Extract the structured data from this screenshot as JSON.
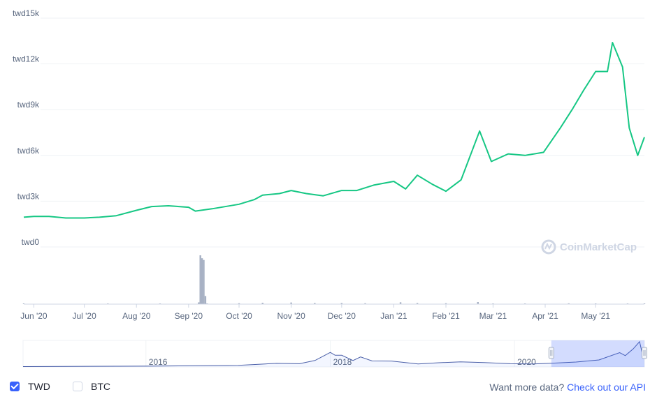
{
  "chart_data": {
    "type": "line",
    "currency_unit": "TWD",
    "y_axis_ticks": [
      "twd0",
      "twd3k",
      "twd6k",
      "twd9k",
      "twd12k",
      "twd15k"
    ],
    "y_axis_values": [
      0,
      3000,
      6000,
      9000,
      12000,
      15000
    ],
    "ylim": [
      0,
      15000
    ],
    "x_axis_ticks": [
      "Jun '20",
      "Jul '20",
      "Aug '20",
      "Sep '20",
      "Oct '20",
      "Nov '20",
      "Dec '20",
      "Jan '21",
      "Feb '21",
      "Mar '21",
      "Apr '21",
      "May '21"
    ],
    "xlim": [
      "2020-05-26",
      "2021-05-30"
    ],
    "grid": true,
    "line_color": "#16c784",
    "series": [
      {
        "values_by_date": {
          "2020-05-26": 1950,
          "2020-06-01": 2000,
          "2020-06-10": 2000,
          "2020-06-20": 1900,
          "2020-07-01": 1900,
          "2020-07-10": 1950,
          "2020-07-20": 2050,
          "2020-08-01": 2400,
          "2020-08-10": 2650,
          "2020-08-20": 2700,
          "2020-09-01": 2600,
          "2020-09-05": 2350,
          "2020-09-15": 2500,
          "2020-10-01": 2800,
          "2020-10-10": 3100,
          "2020-10-15": 3400,
          "2020-10-25": 3500,
          "2020-11-01": 3700,
          "2020-11-10": 3500,
          "2020-11-20": 3350,
          "2020-12-01": 3700,
          "2020-12-10": 3700,
          "2020-12-20": 4050,
          "2021-01-01": 4300,
          "2021-01-08": 3800,
          "2021-01-15": 4700,
          "2021-01-24": 4100,
          "2021-02-01": 3650,
          "2021-02-10": 4400,
          "2021-02-21": 7600,
          "2021-02-28": 5600,
          "2021-03-10": 6100,
          "2021-03-20": 6000,
          "2021-03-31": 6200,
          "2021-04-10": 7800,
          "2021-04-17": 9000,
          "2021-04-24": 10300,
          "2021-05-01": 11500,
          "2021-05-08": 11500,
          "2021-05-11": 13400,
          "2021-05-17": 11800,
          "2021-05-21": 7800,
          "2021-05-26": 6000,
          "2021-05-30": 7200
        }
      }
    ],
    "volume": {
      "color": "#a6b0c3",
      "values_by_date": {
        "2020-05-26": 0.4,
        "2020-07-15": 0.5,
        "2020-08-15": 0.5,
        "2020-09-07": 1.5,
        "2020-09-08": 42,
        "2020-09-09": 39.5,
        "2020-09-10": 38,
        "2020-09-11": 7,
        "2020-09-12": 0.5,
        "2020-10-01": 0.8,
        "2020-10-15": 1.2,
        "2020-11-01": 1.4,
        "2020-11-15": 1.0,
        "2020-12-01": 1.0,
        "2020-12-15": 0.8,
        "2021-01-05": 1.6,
        "2021-01-15": 1.0,
        "2021-02-01": 0.8,
        "2021-02-20": 1.8,
        "2021-03-01": 0.6,
        "2021-03-20": 0.5,
        "2021-04-15": 0.7,
        "2021-05-01": 0.6,
        "2021-05-20": 0.5,
        "2021-05-30": 0.5
      }
    },
    "navigator": {
      "labels": [
        "2016",
        "2018",
        "2020"
      ],
      "xlim": [
        "2014-09-01",
        "2021-05-30"
      ],
      "selection": [
        "2020-05-26",
        "2021-05-30"
      ],
      "values_by_date": {
        "2014-09-01": 200,
        "2016-01-01": 400,
        "2017-01-01": 800,
        "2017-06-01": 1900,
        "2017-09-01": 1700,
        "2017-11-01": 3400,
        "2018-01-01": 7700,
        "2018-01-20": 6200,
        "2018-02-15": 6200,
        "2018-04-01": 3400,
        "2018-05-01": 5300,
        "2018-06-15": 3200,
        "2018-09-01": 3100,
        "2018-12-15": 1600,
        "2019-03-01": 2200,
        "2019-06-01": 2700,
        "2019-09-01": 2300,
        "2019-12-15": 1700,
        "2020-03-15": 1600,
        "2020-06-01": 2000,
        "2020-09-01": 2600,
        "2020-12-01": 3700,
        "2021-02-21": 7600,
        "2021-03-15": 6000,
        "2021-04-15": 9500,
        "2021-05-11": 13400,
        "2021-05-20": 8000,
        "2021-05-30": 7200
      }
    }
  },
  "watermark": "CoinMarketCap",
  "footer": {
    "twd_label": "TWD",
    "btc_label": "BTC",
    "twd_checked": true,
    "btc_checked": false,
    "more_text": "Want more data?",
    "more_link": "Check out our API"
  }
}
